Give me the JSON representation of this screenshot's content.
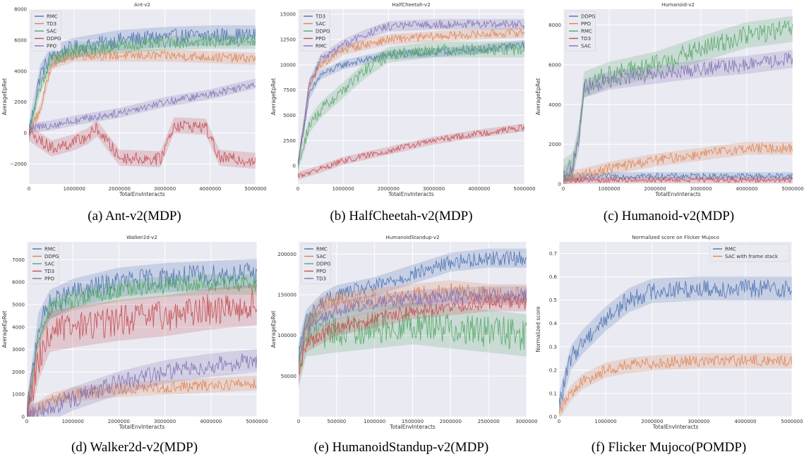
{
  "colors": {
    "blue": "#4c72b0",
    "orange": "#dd8452",
    "green": "#55a868",
    "red": "#c44e52",
    "purple": "#8172b3",
    "bg": "#eaeaf2",
    "grid": "#ffffff"
  },
  "chart_data": [
    {
      "type": "line",
      "title": "Ant-v2",
      "caption": "(a) Ant-v2(MDP)",
      "xlabel": "TotalEnvInteracts",
      "ylabel": "AverageEpRet",
      "xlim": [
        0,
        5000000
      ],
      "ylim": [
        -3300,
        8000
      ],
      "xticks": [
        0,
        1000000,
        2000000,
        3000000,
        4000000,
        5000000
      ],
      "xtick_labels": [
        "0",
        "1000000",
        "2000000",
        "3000000",
        "4000000",
        "5000000"
      ],
      "yticks": [
        -2000,
        0,
        2000,
        4000,
        6000,
        8000
      ],
      "ytick_labels": [
        "−2000",
        "0",
        "2000",
        "4000",
        "6000",
        "8000"
      ],
      "legend": "top-left",
      "series": [
        {
          "name": "RMC",
          "color": "#4c72b0",
          "noise": 500,
          "x": [
            0,
            250000,
            500000,
            1000000,
            2000000,
            3000000,
            4000000,
            5000000
          ],
          "y": [
            0,
            3800,
            5000,
            5500,
            6000,
            6200,
            6300,
            6300
          ]
        },
        {
          "name": "TD3",
          "color": "#dd8452",
          "noise": 300,
          "x": [
            0,
            250000,
            500000,
            1000000,
            2000000,
            3000000,
            4000000,
            5000000
          ],
          "y": [
            0,
            1500,
            4500,
            5000,
            5000,
            5000,
            4900,
            4800
          ]
        },
        {
          "name": "SAC",
          "color": "#55a868",
          "noise": 350,
          "x": [
            0,
            250000,
            500000,
            1000000,
            2000000,
            3000000,
            4000000,
            5000000
          ],
          "y": [
            0,
            3000,
            4800,
            5300,
            5600,
            5800,
            5900,
            5900
          ]
        },
        {
          "name": "DDPG",
          "color": "#c44e52",
          "noise": 400,
          "x": [
            0,
            500000,
            1000000,
            1300000,
            1500000,
            2000000,
            2900000,
            3200000,
            3900000,
            4200000,
            5000000
          ],
          "y": [
            0,
            -1000,
            -600,
            -200,
            300,
            -1600,
            -1700,
            500,
            400,
            -1600,
            -1800
          ]
        },
        {
          "name": "PPO",
          "color": "#8172b3",
          "noise": 250,
          "x": [
            0,
            500000,
            1000000,
            2000000,
            3000000,
            4000000,
            5000000
          ],
          "y": [
            300,
            500,
            800,
            1300,
            2000,
            2500,
            3200
          ]
        }
      ]
    },
    {
      "type": "line",
      "title": "HalfCheetah-v2",
      "caption": "(b) HalfCheetah-v2(MDP)",
      "xlabel": "TotalEnvInteracts",
      "ylabel": "AverageEpRet",
      "xlim": [
        0,
        5000000
      ],
      "ylim": [
        -1800,
        15500
      ],
      "xticks": [
        0,
        1000000,
        2000000,
        3000000,
        4000000,
        5000000
      ],
      "xtick_labels": [
        "0",
        "1000000",
        "2000000",
        "3000000",
        "4000000",
        "5000000"
      ],
      "yticks": [
        0,
        2500,
        5000,
        7500,
        10000,
        12500,
        15000
      ],
      "ytick_labels": [
        "0",
        "2500",
        "5000",
        "7500",
        "10000",
        "12500",
        "15000"
      ],
      "legend": "top-left",
      "series": [
        {
          "name": "TD3",
          "color": "#4c72b0",
          "noise": 350,
          "x": [
            0,
            250000,
            500000,
            1000000,
            2000000,
            3000000,
            4000000,
            5000000
          ],
          "y": [
            0,
            7000,
            9000,
            10000,
            11000,
            11200,
            11500,
            12000
          ]
        },
        {
          "name": "SAC",
          "color": "#dd8452",
          "noise": 400,
          "x": [
            0,
            250000,
            500000,
            1000000,
            2000000,
            3000000,
            4000000,
            5000000
          ],
          "y": [
            0,
            8000,
            10000,
            11500,
            12500,
            12800,
            13000,
            13200
          ]
        },
        {
          "name": "DDPG",
          "color": "#55a868",
          "noise": 600,
          "x": [
            0,
            250000,
            500000,
            1000000,
            1500000,
            2000000,
            3000000,
            4000000,
            5000000
          ],
          "y": [
            0,
            4000,
            5500,
            7500,
            9500,
            11000,
            11500,
            11500,
            11500
          ]
        },
        {
          "name": "PPO",
          "color": "#c44e52",
          "noise": 300,
          "x": [
            0,
            500000,
            1000000,
            2000000,
            3000000,
            4000000,
            5000000
          ],
          "y": [
            -1000,
            -300,
            500,
            1500,
            2500,
            3200,
            3800
          ]
        },
        {
          "name": "RMC",
          "color": "#8172b3",
          "noise": 400,
          "x": [
            0,
            250000,
            500000,
            1000000,
            1500000,
            2000000,
            3000000,
            4000000,
            5000000
          ],
          "y": [
            0,
            8000,
            10500,
            12000,
            13000,
            13800,
            14000,
            14000,
            14000
          ]
        }
      ]
    },
    {
      "type": "line",
      "title": "Humanoid-v2",
      "caption": "(c) Humanoid-v2(MDP)",
      "xlabel": "TotalEnvInteracts",
      "ylabel": "AverageEpRet",
      "xlim": [
        0,
        5000000
      ],
      "ylim": [
        0,
        8800
      ],
      "xticks": [
        0,
        1000000,
        2000000,
        3000000,
        4000000,
        5000000
      ],
      "xtick_labels": [
        "0",
        "1000000",
        "2000000",
        "3000000",
        "4000000",
        "5000000"
      ],
      "yticks": [
        0,
        2000,
        4000,
        6000,
        8000
      ],
      "ytick_labels": [
        "0",
        "2000",
        "4000",
        "6000",
        "8000"
      ],
      "legend": "top-left",
      "series": [
        {
          "name": "DDPG",
          "color": "#4c72b0",
          "noise": 150,
          "x": [
            0,
            1000000,
            2000000,
            3000000,
            4000000,
            5000000
          ],
          "y": [
            300,
            400,
            400,
            400,
            400,
            400
          ]
        },
        {
          "name": "PPO",
          "color": "#dd8452",
          "noise": 250,
          "x": [
            0,
            500000,
            1000000,
            2000000,
            3000000,
            4000000,
            5000000
          ],
          "y": [
            300,
            500,
            800,
            1200,
            1500,
            1800,
            1800
          ]
        },
        {
          "name": "RMC",
          "color": "#55a868",
          "noise": 500,
          "x": [
            0,
            200000,
            350000,
            450000,
            1000000,
            2000000,
            3000000,
            4000000,
            5000000
          ],
          "y": [
            600,
            900,
            2500,
            5000,
            5500,
            6000,
            6800,
            7500,
            7800
          ]
        },
        {
          "name": "TD3",
          "color": "#c44e52",
          "noise": 120,
          "x": [
            0,
            1000000,
            2000000,
            3000000,
            4000000,
            5000000
          ],
          "y": [
            150,
            200,
            200,
            200,
            200,
            200
          ]
        },
        {
          "name": "SAC",
          "color": "#8172b3",
          "noise": 350,
          "x": [
            0,
            200000,
            350000,
            450000,
            1000000,
            2000000,
            3000000,
            4000000,
            5000000
          ],
          "y": [
            400,
            800,
            2500,
            4800,
            5200,
            5500,
            5800,
            6000,
            6300
          ]
        }
      ]
    },
    {
      "type": "line",
      "title": "Walker2d-v2",
      "caption": "(d) Walker2d-v2(MDP)",
      "xlabel": "TotalEnvInteracts",
      "ylabel": "AverageEpRet",
      "xlim": [
        0,
        5000000
      ],
      "ylim": [
        0,
        7800
      ],
      "xticks": [
        0,
        1000000,
        2000000,
        3000000,
        4000000,
        5000000
      ],
      "xtick_labels": [
        "0",
        "1000000",
        "2000000",
        "3000000",
        "4000000",
        "5000000"
      ],
      "yticks": [
        0,
        1000,
        2000,
        3000,
        4000,
        5000,
        6000,
        7000
      ],
      "ytick_labels": [
        "0",
        "1000",
        "2000",
        "3000",
        "4000",
        "5000",
        "6000",
        "7000"
      ],
      "legend": "top-left",
      "series": [
        {
          "name": "RMC",
          "color": "#4c72b0",
          "noise": 500,
          "x": [
            0,
            250000,
            500000,
            1000000,
            2000000,
            3000000,
            4000000,
            5000000
          ],
          "y": [
            0,
            4000,
            5000,
            5500,
            6000,
            6200,
            6300,
            6400
          ]
        },
        {
          "name": "DDPG",
          "color": "#dd8452",
          "noise": 250,
          "x": [
            0,
            500000,
            1000000,
            2000000,
            3000000,
            4000000,
            5000000
          ],
          "y": [
            0,
            700,
            1000,
            1200,
            1300,
            1400,
            1500
          ]
        },
        {
          "name": "SAC",
          "color": "#55a868",
          "noise": 350,
          "x": [
            0,
            250000,
            500000,
            1000000,
            2000000,
            3000000,
            4000000,
            5000000
          ],
          "y": [
            0,
            3500,
            4800,
            5200,
            5600,
            5800,
            5900,
            5900
          ]
        },
        {
          "name": "TD3",
          "color": "#c44e52",
          "noise": 700,
          "x": [
            0,
            250000,
            500000,
            1000000,
            2000000,
            3000000,
            4000000,
            5000000
          ],
          "y": [
            0,
            2500,
            3800,
            4000,
            4300,
            4500,
            4800,
            5000
          ]
        },
        {
          "name": "PPO",
          "color": "#8172b3",
          "noise": 400,
          "x": [
            0,
            500000,
            1000000,
            2000000,
            3000000,
            4000000,
            5000000
          ],
          "y": [
            0,
            300,
            800,
            1500,
            2000,
            2300,
            2500
          ]
        }
      ]
    },
    {
      "type": "line",
      "title": "HumanoidStandup-v2",
      "caption": "(e) HumanoidStandup-v2(MDP)",
      "xlabel": "TotalEnvInteracts",
      "ylabel": "AverageEpRet",
      "xlim": [
        0,
        3000000
      ],
      "ylim": [
        0,
        215000
      ],
      "xticks": [
        0,
        500000,
        1000000,
        1500000,
        2000000,
        2500000,
        3000000
      ],
      "xtick_labels": [
        "0",
        "500000",
        "1000000",
        "1500000",
        "2000000",
        "2500000",
        "3000000"
      ],
      "yticks": [
        50000,
        100000,
        150000,
        200000
      ],
      "ytick_labels": [
        "50000",
        "100000",
        "150000",
        "200000"
      ],
      "legend": "top-left",
      "series": [
        {
          "name": "RMC",
          "color": "#4c72b0",
          "noise": 9000,
          "x": [
            0,
            100000,
            300000,
            500000,
            1000000,
            1500000,
            2000000,
            2500000,
            3000000
          ],
          "y": [
            80000,
            120000,
            140000,
            150000,
            160000,
            175000,
            190000,
            195000,
            195000
          ]
        },
        {
          "name": "SAC",
          "color": "#dd8452",
          "noise": 10000,
          "x": [
            0,
            100000,
            300000,
            500000,
            1000000,
            1500000,
            2000000,
            2500000,
            3000000
          ],
          "y": [
            60000,
            110000,
            135000,
            140000,
            145000,
            150000,
            155000,
            150000,
            150000
          ]
        },
        {
          "name": "DDPG",
          "color": "#55a868",
          "noise": 20000,
          "x": [
            0,
            100000,
            500000,
            1000000,
            1500000,
            2000000,
            2500000,
            3000000
          ],
          "y": [
            60000,
            100000,
            105000,
            110000,
            115000,
            110000,
            105000,
            100000
          ]
        },
        {
          "name": "PPO",
          "color": "#c44e52",
          "noise": 8000,
          "x": [
            0,
            100000,
            500000,
            1000000,
            1500000,
            2000000,
            2500000,
            3000000
          ],
          "y": [
            50000,
            90000,
            110000,
            120000,
            130000,
            135000,
            140000,
            140000
          ]
        },
        {
          "name": "TD3",
          "color": "#8172b3",
          "noise": 8000,
          "x": [
            0,
            100000,
            500000,
            1000000,
            1500000,
            2000000,
            2500000,
            3000000
          ],
          "y": [
            70000,
            110000,
            130000,
            140000,
            145000,
            148000,
            150000,
            150000
          ]
        }
      ]
    },
    {
      "type": "line",
      "title": "Normalized score on Flicker Mujoco",
      "caption": "(f) Flicker Mujoco(POMDP)",
      "xlabel": "TotalEnvInteracts",
      "ylabel": "Normalized score",
      "xlim": [
        0,
        5000000
      ],
      "ylim": [
        0,
        0.75
      ],
      "xticks": [
        0,
        1000000,
        2000000,
        3000000,
        4000000,
        5000000
      ],
      "xtick_labels": [
        "0",
        "1000000",
        "2000000",
        "3000000",
        "4000000",
        "5000000"
      ],
      "yticks": [
        0,
        0.1,
        0.2,
        0.3,
        0.4,
        0.5,
        0.6,
        0.7
      ],
      "ytick_labels": [
        "0.0",
        "0.1",
        "0.2",
        "0.3",
        "0.4",
        "0.5",
        "0.6",
        "0.7"
      ],
      "legend": "top-right",
      "series": [
        {
          "name": "RMC",
          "color": "#4c72b0",
          "noise": 0.04,
          "x": [
            0,
            250000,
            500000,
            1000000,
            1500000,
            2000000,
            3000000,
            4000000,
            5000000
          ],
          "y": [
            0.05,
            0.25,
            0.32,
            0.42,
            0.5,
            0.54,
            0.55,
            0.55,
            0.55
          ]
        },
        {
          "name": "SAC with frame stack",
          "color": "#dd8452",
          "noise": 0.025,
          "x": [
            0,
            250000,
            500000,
            1000000,
            1500000,
            2000000,
            3000000,
            4000000,
            5000000
          ],
          "y": [
            0.02,
            0.1,
            0.15,
            0.2,
            0.22,
            0.23,
            0.24,
            0.24,
            0.24
          ]
        }
      ]
    }
  ]
}
